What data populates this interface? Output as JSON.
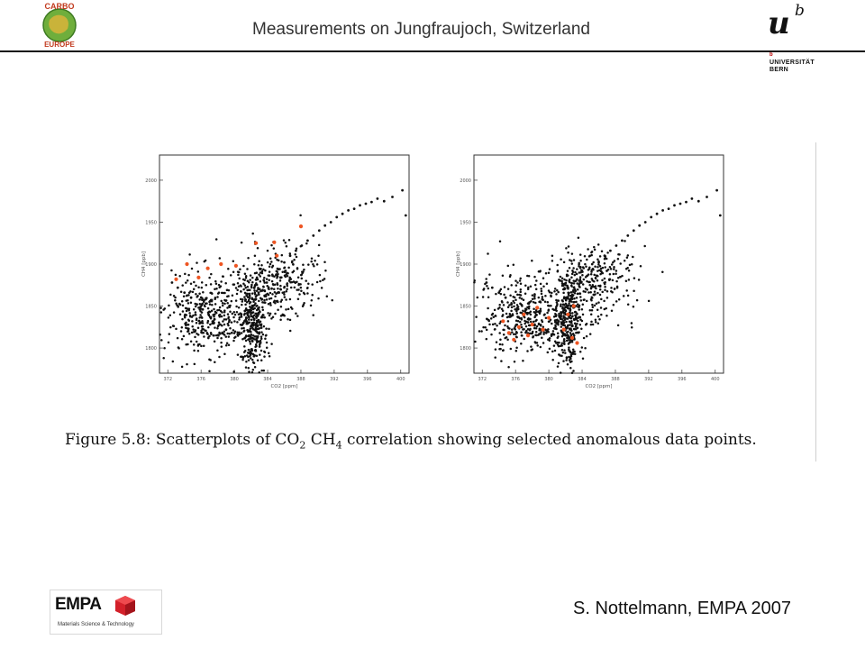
{
  "header": {
    "title": "Measurements on Jungfraujoch, Switzerland",
    "carbo_logo": {
      "top_text": "CARBO",
      "bottom_text": "EUROPE"
    },
    "unibe_logo": {
      "u": "u",
      "b": "b",
      "sup": "b",
      "name_line1": "UNIVERSITÄT",
      "name_line2": "BERN"
    }
  },
  "figure": {
    "caption_prefix": "Figure 5.8:  Scatterplots of CO",
    "caption_sub1": "2",
    "caption_mid": " CH",
    "caption_sub2": "4",
    "caption_suffix": " correlation showing selected anomalous data points."
  },
  "footer": {
    "credit": "S. Nottelmann, EMPA 2007",
    "empa_logo": {
      "word": "EMPA",
      "tagline": "Materials Science & Technology"
    }
  },
  "colors": {
    "points": "#111111",
    "anomalous": "#ee5522",
    "frame": "#333333"
  },
  "chart_data": [
    {
      "type": "scatter",
      "xlabel": "CO2 [ppm]",
      "ylabel": "CH4 [ppb]",
      "xlim": [
        371,
        401
      ],
      "ylim": [
        1770,
        2030
      ],
      "xticks": [
        372,
        376,
        380,
        384,
        388,
        392,
        396,
        400
      ],
      "xtick_labels": [
        "372",
        "376",
        "380",
        "384",
        "388",
        "392",
        "396",
        "400"
      ],
      "yticks": [
        1800,
        1850,
        1900,
        1950,
        2000
      ],
      "ytick_labels": [
        "1800",
        "1850",
        "1900",
        "1950",
        "2000"
      ],
      "series": [
        {
          "role": "measurements",
          "x": [
            372.5,
            373.2,
            374.0,
            374.8,
            375.5,
            376.2,
            376.9,
            377.6,
            378.3,
            379.0,
            379.7,
            380.4,
            381.1,
            381.8,
            382.5,
            383.2,
            383.9,
            384.6,
            385.3,
            386.0,
            386.7,
            387.4,
            388.1,
            388.8,
            389.5,
            390.2,
            390.9,
            391.6,
            392.3,
            393.0,
            393.7,
            394.4,
            395.1,
            395.8,
            396.5,
            397.2,
            398.0,
            399.0,
            400.2,
            400.6
          ],
          "y": [
            1878,
            1872,
            1866,
            1860,
            1852,
            1846,
            1840,
            1834,
            1828,
            1822,
            1818,
            1816,
            1830,
            1845,
            1858,
            1868,
            1878,
            1886,
            1894,
            1902,
            1910,
            1916,
            1922,
            1928,
            1934,
            1940,
            1946,
            1950,
            1956,
            1960,
            1964,
            1966,
            1970,
            1972,
            1974,
            1978,
            1975,
            1980,
            1988,
            1958
          ],
          "cloud": [
            {
              "center_x": 377.0,
              "center_y": 1835,
              "spread_x": 2.8,
              "spread_y": 22,
              "count": 380
            },
            {
              "center_x": 382.3,
              "center_y": 1830,
              "spread_x": 0.9,
              "spread_y": 30,
              "count": 320
            },
            {
              "center_x": 385.5,
              "center_y": 1878,
              "spread_x": 2.4,
              "spread_y": 22,
              "count": 260
            },
            {
              "center_x": 379.5,
              "center_y": 1880,
              "spread_x": 4.0,
              "spread_y": 15,
              "count": 60
            }
          ]
        },
        {
          "role": "anomalous",
          "x": [
            373.0,
            374.3,
            375.7,
            376.8,
            378.4,
            380.2,
            382.6,
            384.8,
            385.1,
            388.0
          ],
          "y": [
            1882,
            1900,
            1884,
            1895,
            1900,
            1898,
            1925,
            1926,
            1910,
            1945
          ]
        }
      ]
    },
    {
      "type": "scatter",
      "xlabel": "CO2 [ppm]",
      "ylabel": "CH4 [ppb]",
      "xlim": [
        371,
        401
      ],
      "ylim": [
        1770,
        2030
      ],
      "xticks": [
        372,
        376,
        380,
        384,
        388,
        392,
        396,
        400
      ],
      "xtick_labels": [
        "372",
        "376",
        "380",
        "384",
        "388",
        "392",
        "396",
        "400"
      ],
      "yticks": [
        1800,
        1850,
        1900,
        1950,
        2000
      ],
      "ytick_labels": [
        "1800",
        "1850",
        "1900",
        "1950",
        "2000"
      ],
      "series": [
        {
          "role": "measurements",
          "x": [
            372.5,
            373.2,
            374.0,
            374.8,
            375.5,
            376.2,
            376.9,
            377.6,
            378.3,
            379.0,
            379.7,
            380.4,
            381.1,
            381.8,
            382.5,
            383.2,
            383.9,
            384.6,
            385.3,
            386.0,
            386.7,
            387.4,
            388.1,
            388.8,
            389.5,
            390.2,
            390.9,
            391.6,
            392.3,
            393.0,
            393.7,
            394.4,
            395.1,
            395.8,
            396.5,
            397.2,
            398.0,
            399.0,
            400.2,
            400.6
          ],
          "y": [
            1878,
            1872,
            1866,
            1860,
            1852,
            1846,
            1840,
            1834,
            1828,
            1822,
            1818,
            1816,
            1830,
            1845,
            1858,
            1868,
            1878,
            1886,
            1894,
            1902,
            1910,
            1916,
            1922,
            1928,
            1934,
            1940,
            1946,
            1950,
            1956,
            1960,
            1964,
            1966,
            1970,
            1972,
            1974,
            1978,
            1975,
            1980,
            1988,
            1958
          ],
          "cloud": [
            {
              "center_x": 377.0,
              "center_y": 1835,
              "spread_x": 2.8,
              "spread_y": 22,
              "count": 380
            },
            {
              "center_x": 382.3,
              "center_y": 1830,
              "spread_x": 0.9,
              "spread_y": 30,
              "count": 320
            },
            {
              "center_x": 385.5,
              "center_y": 1878,
              "spread_x": 2.4,
              "spread_y": 22,
              "count": 260
            },
            {
              "center_x": 379.5,
              "center_y": 1880,
              "spread_x": 4.0,
              "spread_y": 15,
              "count": 60
            }
          ]
        },
        {
          "role": "anomalous",
          "x": [
            374.5,
            375.2,
            375.8,
            376.4,
            377.0,
            377.5,
            378.0,
            378.6,
            379.3,
            380.0,
            381.8,
            382.3,
            382.8,
            383.0,
            383.4
          ],
          "y": [
            1832,
            1818,
            1810,
            1825,
            1840,
            1815,
            1828,
            1848,
            1822,
            1836,
            1822,
            1840,
            1812,
            1850,
            1806
          ]
        }
      ]
    }
  ]
}
